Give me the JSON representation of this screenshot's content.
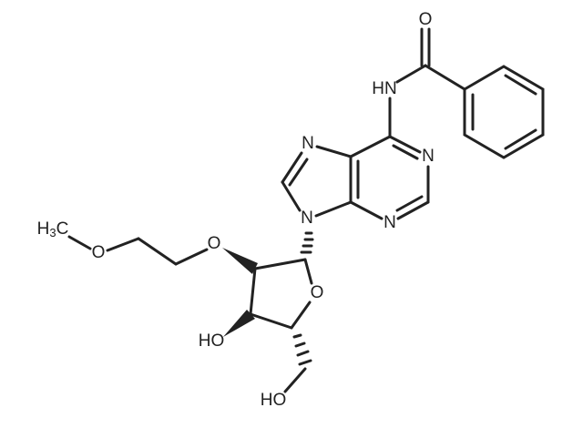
{
  "atoms": {
    "carbonyl_o": "O",
    "amide_n": "HN",
    "purine_n7": "N",
    "purine_n1": "N",
    "purine_n3": "N",
    "purine_n9": "N",
    "ether_o": "O",
    "ring_o": "O",
    "ethoxy_o": "O",
    "hydroxyl_3": "HO",
    "hydroxyl_5": "HO",
    "methyl": {
      "h": "H",
      "sub": "3",
      "c": "C"
    }
  }
}
